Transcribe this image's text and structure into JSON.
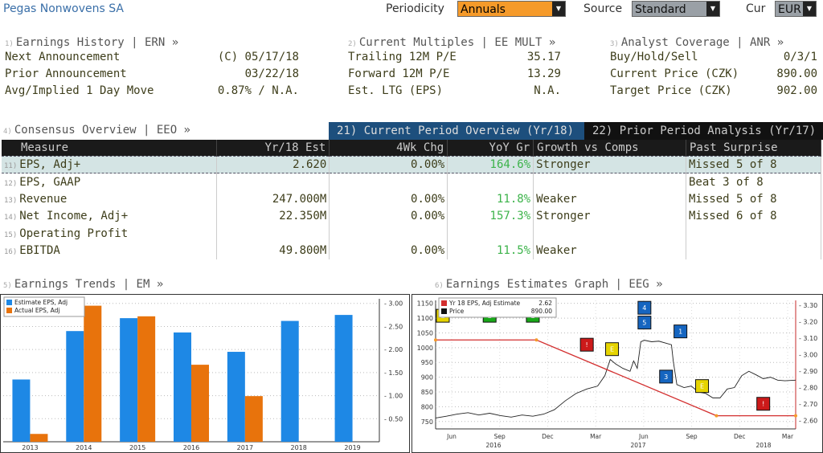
{
  "header": {
    "company": "Pegas Nonwovens SA",
    "periodicity_label": "Periodicity",
    "periodicity_value": "Annuals",
    "source_label": "Source",
    "source_value": "Standard",
    "cur_label": "Cur",
    "cur_value": "EUR"
  },
  "earnings_history": {
    "num": "1)",
    "title": "Earnings History | ERN »",
    "rows": [
      {
        "label": "Next Announcement",
        "value": "(C)  05/17/18"
      },
      {
        "label": "Prior Announcement",
        "value": "03/22/18"
      },
      {
        "label": "Avg/Implied 1 Day Move",
        "value": "0.87% / N.A."
      }
    ]
  },
  "current_multiples": {
    "num": "2)",
    "title": "Current Multiples | EE MULT »",
    "rows": [
      {
        "label": "Trailing 12M P/E",
        "value": "35.17"
      },
      {
        "label": "Forward 12M P/E",
        "value": "13.29"
      },
      {
        "label": "Est. LTG (EPS)",
        "value": "N.A."
      }
    ]
  },
  "analyst_coverage": {
    "num": "3)",
    "title": "Analyst Coverage | ANR »",
    "rows": [
      {
        "label": "Buy/Hold/Sell",
        "value": "0/3/1"
      },
      {
        "label": "Current Price (CZK)",
        "value": "890.00"
      },
      {
        "label": "Target Price (CZK)",
        "value": "902.00"
      }
    ]
  },
  "consensus": {
    "num": "4)",
    "title": "Consensus Overview | EEO »",
    "tab_current": "21) Current Period Overview (Yr/18)",
    "tab_prior": "22) Prior Period Analysis (Yr/17)",
    "columns": [
      "Measure",
      "Yr/18 Est",
      "4Wk Chg",
      "YoY Gr",
      "Growth vs Comps",
      "Past Surprise"
    ],
    "rows": [
      {
        "num": "11)",
        "measure": "EPS, Adj+",
        "est": "2.620",
        "chg": "0.00%",
        "yoy": "164.6%",
        "comps": "Stronger",
        "surprise": "Missed 5 of 8"
      },
      {
        "num": "12)",
        "measure": "EPS, GAAP",
        "est": "",
        "chg": "",
        "yoy": "",
        "comps": "",
        "surprise": "Beat 3 of 8"
      },
      {
        "num": "13)",
        "measure": "Revenue",
        "est": "247.000M",
        "chg": "0.00%",
        "yoy": "11.8%",
        "comps": "Weaker",
        "surprise": "Missed 5 of 8"
      },
      {
        "num": "14)",
        "measure": "Net Income, Adj+",
        "est": "22.350M",
        "chg": "0.00%",
        "yoy": "157.3%",
        "comps": "Stronger",
        "surprise": "Missed 6 of 8"
      },
      {
        "num": "15)",
        "measure": "Operating Profit",
        "est": "",
        "chg": "",
        "yoy": "",
        "comps": "",
        "surprise": ""
      },
      {
        "num": "16)",
        "measure": "EBITDA",
        "est": "49.800M",
        "chg": "0.00%",
        "yoy": "11.5%",
        "comps": "Weaker",
        "surprise": ""
      }
    ]
  },
  "earnings_trends": {
    "num": "5)",
    "title": "Earnings Trends | EM »"
  },
  "estimates_graph": {
    "num": "6)",
    "title": "Earnings Estimates Graph | EEG »"
  },
  "chart_data": [
    {
      "type": "bar",
      "categories": [
        "2013",
        "2014",
        "2015",
        "2016",
        "2017",
        "2018",
        "2019"
      ],
      "series": [
        {
          "name": "Estimate EPS, Adj",
          "color": "#1e88e5",
          "values": [
            1.35,
            2.4,
            2.68,
            2.37,
            1.95,
            2.62,
            2.75
          ]
        },
        {
          "name": "Actual EPS, Adj",
          "color": "#e8730c",
          "values": [
            0.17,
            2.95,
            2.72,
            1.67,
            0.99,
            null,
            null
          ]
        }
      ],
      "yticks": [
        "0.50",
        "1.00",
        "1.50",
        "2.00",
        "2.50",
        "3.00"
      ],
      "ylim": [
        0,
        3.1
      ]
    },
    {
      "type": "line",
      "legend": [
        {
          "name": "Yr 18 EPS, Adj Estimate",
          "value": "2.62",
          "color": "#d32f2f"
        },
        {
          "name": "Price",
          "value": "890.00",
          "color": "#111"
        }
      ],
      "left_ticks": [
        "750",
        "800",
        "850",
        "900",
        "950",
        "1000",
        "1050",
        "1100",
        "1150"
      ],
      "right_ticks": [
        "2.60",
        "2.70",
        "2.80",
        "2.90",
        "3.00",
        "3.10",
        "3.20",
        "3.30"
      ],
      "x_months": [
        "Jun",
        "Sep",
        "Dec",
        "Mar",
        "Jun",
        "Sep",
        "Dec",
        "Mar"
      ],
      "x_years": [
        "2016",
        "2017",
        "2018"
      ],
      "estimate_series": [
        [
          0,
          3.09
        ],
        [
          0.28,
          3.09
        ],
        [
          0.78,
          2.63
        ],
        [
          1.0,
          2.63
        ]
      ],
      "markers": [
        {
          "label": "E",
          "color": "#e6d400",
          "x": 0.02,
          "y": 1108
        },
        {
          "label": "E",
          "color": "#18a818",
          "x": 0.15,
          "y": 1108
        },
        {
          "label": "E",
          "color": "#18a818",
          "x": 0.27,
          "y": 1108
        },
        {
          "label": "!",
          "color": "#cc1a1a",
          "x": 0.42,
          "y": 1010
        },
        {
          "label": "E",
          "color": "#e6d400",
          "x": 0.49,
          "y": 995
        },
        {
          "label": "4",
          "color": "#1565c0",
          "x": 0.58,
          "y": 1135
        },
        {
          "label": "5",
          "color": "#1565c0",
          "x": 0.58,
          "y": 1085
        },
        {
          "label": "1",
          "color": "#1565c0",
          "x": 0.68,
          "y": 1055
        },
        {
          "label": "3",
          "color": "#1565c0",
          "x": 0.64,
          "y": 902
        },
        {
          "label": "E",
          "color": "#e6d400",
          "x": 0.74,
          "y": 870
        },
        {
          "label": "!",
          "color": "#cc1a1a",
          "x": 0.91,
          "y": 810
        }
      ],
      "price_series": [
        [
          0.0,
          762
        ],
        [
          0.03,
          768
        ],
        [
          0.06,
          775
        ],
        [
          0.09,
          780
        ],
        [
          0.12,
          772
        ],
        [
          0.15,
          778
        ],
        [
          0.18,
          770
        ],
        [
          0.21,
          765
        ],
        [
          0.24,
          772
        ],
        [
          0.27,
          768
        ],
        [
          0.3,
          775
        ],
        [
          0.33,
          790
        ],
        [
          0.36,
          820
        ],
        [
          0.39,
          845
        ],
        [
          0.42,
          860
        ],
        [
          0.45,
          870
        ],
        [
          0.47,
          905
        ],
        [
          0.485,
          960
        ],
        [
          0.5,
          945
        ],
        [
          0.52,
          930
        ],
        [
          0.54,
          920
        ],
        [
          0.55,
          955
        ],
        [
          0.56,
          930
        ],
        [
          0.57,
          1020
        ],
        [
          0.58,
          1025
        ],
        [
          0.6,
          1020
        ],
        [
          0.62,
          1022
        ],
        [
          0.64,
          1015
        ],
        [
          0.655,
          1010
        ],
        [
          0.66,
          955
        ],
        [
          0.67,
          875
        ],
        [
          0.69,
          865
        ],
        [
          0.71,
          870
        ],
        [
          0.73,
          850
        ],
        [
          0.75,
          845
        ],
        [
          0.77,
          830
        ],
        [
          0.79,
          830
        ],
        [
          0.81,
          860
        ],
        [
          0.83,
          865
        ],
        [
          0.85,
          905
        ],
        [
          0.87,
          920
        ],
        [
          0.89,
          908
        ],
        [
          0.91,
          895
        ],
        [
          0.93,
          900
        ],
        [
          0.95,
          890
        ],
        [
          0.97,
          888
        ],
        [
          1.0,
          890
        ]
      ]
    }
  ]
}
